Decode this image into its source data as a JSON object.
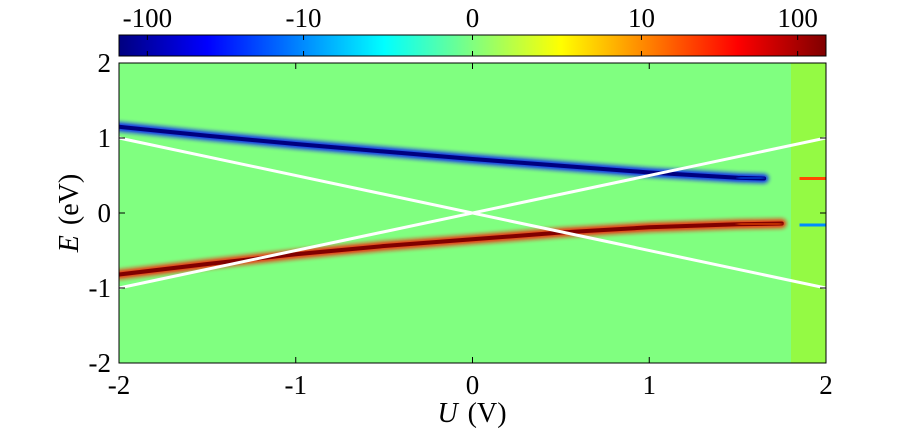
{
  "chart_data": {
    "type": "heatmap",
    "title": "",
    "xlabel": {
      "var": "U",
      "unit": "(V)"
    },
    "ylabel": {
      "var": "E",
      "unit": "(eV)"
    },
    "xlim": [
      -2,
      2
    ],
    "ylim": [
      -2,
      2
    ],
    "xticks": [
      -2,
      -1,
      0,
      1,
      2
    ],
    "yticks": [
      -2,
      -1,
      0,
      1,
      2
    ],
    "xtick_labels": [
      "-2",
      "-1",
      "0",
      "1",
      "2"
    ],
    "ytick_labels": [
      "-2",
      "-1",
      "0",
      "1",
      "2"
    ],
    "background_value": 0,
    "colorbar": {
      "orientation": "horizontal",
      "placement": "top",
      "scale": "symlog",
      "range": [
        -150,
        150
      ],
      "ticks": [
        -100,
        -10,
        0,
        10,
        100
      ],
      "tick_labels": [
        "-100",
        "-10",
        "0",
        "10",
        "100"
      ],
      "colormap": "jet"
    },
    "series": [
      {
        "name": "negative-band",
        "sign": "negative",
        "peak_value": -150,
        "U": [
          -2.0,
          -1.5,
          -1.0,
          -0.5,
          0.0,
          0.5,
          1.0,
          1.5,
          1.65
        ],
        "E": [
          1.15,
          1.03,
          0.92,
          0.82,
          0.72,
          0.63,
          0.54,
          0.47,
          0.46
        ]
      },
      {
        "name": "positive-band",
        "sign": "positive",
        "peak_value": 150,
        "U": [
          -2.0,
          -1.5,
          -1.0,
          -0.5,
          0.0,
          0.5,
          1.0,
          1.5,
          1.75
        ],
        "E": [
          -0.82,
          -0.68,
          -0.55,
          -0.44,
          -0.35,
          -0.26,
          -0.19,
          -0.15,
          -0.14
        ]
      },
      {
        "name": "edge-feature-upper",
        "sign": "positive",
        "peak_value": 20,
        "U": [
          1.85,
          2.0
        ],
        "E": [
          0.46,
          0.46
        ]
      },
      {
        "name": "edge-feature-lower",
        "sign": "negative",
        "peak_value": -10,
        "U": [
          1.85,
          2.0
        ],
        "E": [
          -0.16,
          -0.16
        ]
      }
    ],
    "lines": [
      {
        "name": "line-E-equals-U-over-2",
        "color": "#ffffff",
        "U": [
          -2,
          2
        ],
        "E": [
          -1,
          1
        ]
      },
      {
        "name": "line-E-equals-minus-U-over-2",
        "color": "#ffffff",
        "U": [
          -2,
          2
        ],
        "E": [
          1,
          -1
        ]
      }
    ]
  }
}
